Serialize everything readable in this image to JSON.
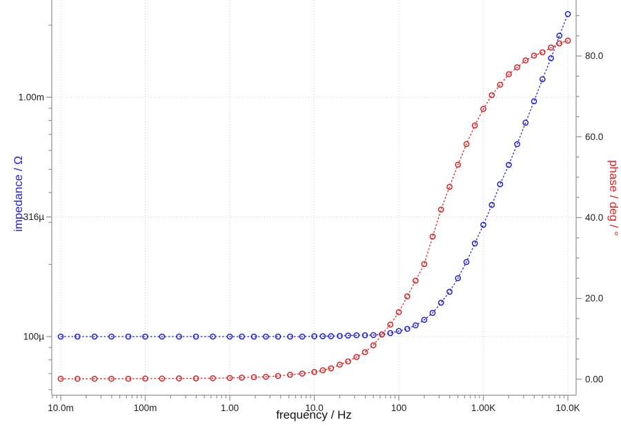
{
  "chart_data": {
    "type": "line",
    "title": "",
    "description": "Bode plot: impedance magnitude (left, log axis, blue) and phase (right, linear axis, red) versus frequency (log axis), open-circle markers with dashed connecting lines",
    "grid": "dotted, at major ticks",
    "legend": "none",
    "x_axis": {
      "label": "frequency / Hz",
      "scale": "log",
      "range_hz": [
        0.0078,
        12600
      ],
      "major_ticks": [
        {
          "value": 0.01,
          "label": "10.0m"
        },
        {
          "value": 0.1,
          "label": "100m"
        },
        {
          "value": 1,
          "label": "1.00"
        },
        {
          "value": 10,
          "label": "10.0"
        },
        {
          "value": 100,
          "label": "100"
        },
        {
          "value": 1000,
          "label": "1.00K"
        },
        {
          "value": 10000,
          "label": "10.0K"
        }
      ]
    },
    "y_left_axis": {
      "label": "impedance / Ω",
      "scale": "log",
      "color": "#1f1fdd",
      "range_ohm": [
        5.7e-05,
        0.00242
      ],
      "major_ticks": [
        {
          "value": 0.0001,
          "label": "100µ"
        },
        {
          "value": 0.000316,
          "label": "316µ"
        },
        {
          "value": 0.001,
          "label": "1.00m"
        }
      ]
    },
    "y_right_axis": {
      "label": "phase / deg / °",
      "scale": "linear",
      "color": "#e01f1f",
      "range_deg": [
        -4,
        92.5
      ],
      "minor_tick_step_deg": 5,
      "major_ticks": [
        {
          "value": 0,
          "label": "0.00"
        },
        {
          "value": 20,
          "label": "20.0"
        },
        {
          "value": 40,
          "label": "40.0"
        },
        {
          "value": 60,
          "label": "60.0"
        },
        {
          "value": 80,
          "label": "80.0"
        }
      ]
    },
    "frequencies_hz": [
      0.01,
      0.0158,
      0.0251,
      0.0398,
      0.0631,
      0.1,
      0.158,
      0.251,
      0.398,
      0.631,
      1.0,
      1.39,
      1.93,
      2.68,
      3.73,
      5.18,
      7.2,
      10,
      12.6,
      15.8,
      20,
      25.1,
      31.6,
      39.8,
      50.1,
      63.1,
      79.4,
      100,
      126,
      158,
      200,
      251,
      316,
      398,
      501,
      631,
      794,
      1000,
      1260,
      1580,
      2000,
      2510,
      3160,
      3980,
      5010,
      6310,
      7940,
      10000
    ],
    "series": [
      {
        "name": "impedance",
        "axis": "left",
        "color": "#1f1fdd",
        "marker": "open-circle",
        "line_style": "dashed",
        "values_uohm": [
          100,
          100,
          100,
          100,
          100,
          100,
          100,
          100,
          100,
          100,
          100,
          100,
          100,
          100,
          100,
          100,
          100,
          100.3,
          100.3,
          100.4,
          100.6,
          101.0,
          101.3,
          101.3,
          101.5,
          102.0,
          103.4,
          105.5,
          107.7,
          111.4,
          117.5,
          125.6,
          138.5,
          153.9,
          175.4,
          204.9,
          244.9,
          292.9,
          355,
          433,
          522,
          637,
          783,
          962,
          1189,
          1456,
          1809,
          2226
        ]
      },
      {
        "name": "phase",
        "axis": "right",
        "color": "#e01f1f",
        "marker": "open-circle",
        "line_style": "dashed",
        "values_deg": [
          0.1,
          0.1,
          0.1,
          0.1,
          0.1,
          0.15,
          0.15,
          0.2,
          0.2,
          0.25,
          0.3,
          0.4,
          0.5,
          0.6,
          0.8,
          1.1,
          1.4,
          1.8,
          2.2,
          2.7,
          3.6,
          4.4,
          5.5,
          6.7,
          8.4,
          11.1,
          13.5,
          16.6,
          20.5,
          24.4,
          28.5,
          35.3,
          42.0,
          47.6,
          53.1,
          58.2,
          62.8,
          66.9,
          70.3,
          72.9,
          75.5,
          77.2,
          78.9,
          80.1,
          80.9,
          82.1,
          83.1,
          83.8
        ]
      }
    ]
  }
}
